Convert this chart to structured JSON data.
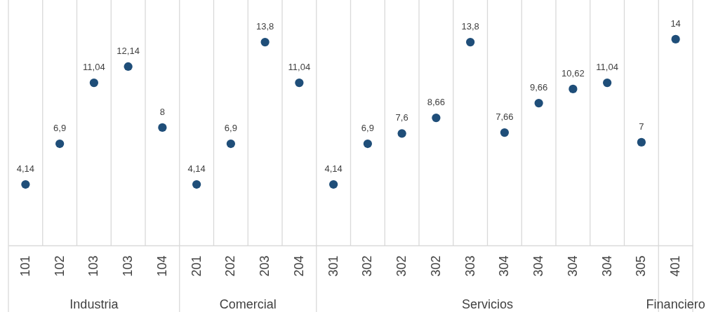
{
  "chart_data": {
    "type": "scatter",
    "categories": [
      "101",
      "102",
      "103",
      "103",
      "104",
      "201",
      "202",
      "203",
      "204",
      "301",
      "302",
      "302",
      "302",
      "303",
      "304",
      "304",
      "304",
      "304",
      "305",
      "401"
    ],
    "series": [
      {
        "color": "#1f4e79",
        "values": [
          4.14,
          6.9,
          11.04,
          12.14,
          8,
          4.14,
          6.9,
          13.8,
          11.04,
          4.14,
          6.9,
          7.6,
          8.66,
          13.8,
          7.66,
          9.66,
          10.62,
          11.04,
          7,
          14
        ],
        "value_labels": [
          "4,14",
          "6,9",
          "11,04",
          "12,14",
          "8",
          "4,14",
          "6,9",
          "13,8",
          "11,04",
          "4,14",
          "6,9",
          "7,6",
          "8,66",
          "13,8",
          "7,66",
          "9,66",
          "10,62",
          "11,04",
          "7",
          "14"
        ]
      }
    ],
    "annotations": [
      "Industria",
      "Comercial",
      "Servicios",
      "Financiero"
    ],
    "marker": "circle",
    "grid": "x"
  }
}
